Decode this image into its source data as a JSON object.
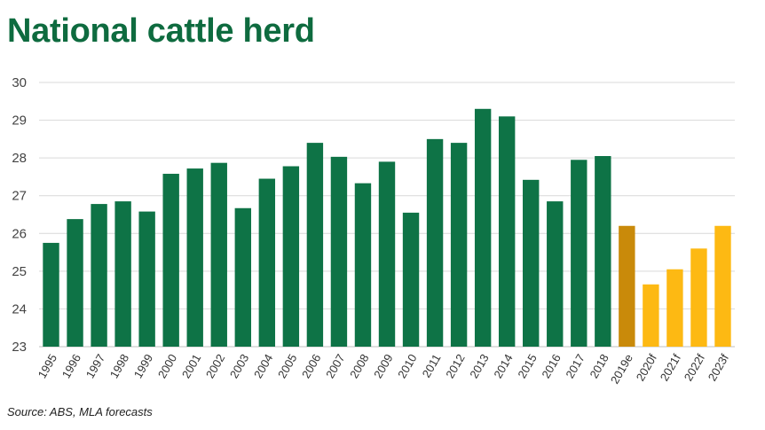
{
  "title": "National cattle herd",
  "source": "Source: ABS, MLA forecasts",
  "colors": {
    "title": "#0e6b3f",
    "historical": "#0e7346",
    "estimate": "#c98a0a",
    "forecast": "#fdb913",
    "grid": "#d9d9d9"
  },
  "chart_data": {
    "type": "bar",
    "title": "National cattle herd",
    "xlabel": "",
    "ylabel": "",
    "ylim": [
      23,
      30
    ],
    "yticks": [
      23,
      24,
      25,
      26,
      27,
      28,
      29,
      30
    ],
    "grid": true,
    "legend": "none",
    "categories": [
      "1995",
      "1996",
      "1997",
      "1998",
      "1999",
      "2000",
      "2001",
      "2002",
      "2003",
      "2004",
      "2005",
      "2006",
      "2007",
      "2008",
      "2009",
      "2010",
      "2011",
      "2012",
      "2013",
      "2014",
      "2015",
      "2016",
      "2017",
      "2018",
      "2019e",
      "2020f",
      "2021f",
      "2022f",
      "2023f"
    ],
    "values": [
      25.75,
      26.38,
      26.78,
      26.85,
      26.58,
      27.58,
      27.72,
      27.87,
      26.67,
      27.45,
      27.78,
      28.4,
      28.03,
      27.33,
      27.9,
      26.55,
      28.5,
      28.4,
      29.3,
      29.1,
      27.42,
      26.85,
      27.95,
      28.05,
      26.2,
      24.65,
      25.05,
      25.6,
      26.2
    ],
    "kinds": [
      "historical",
      "historical",
      "historical",
      "historical",
      "historical",
      "historical",
      "historical",
      "historical",
      "historical",
      "historical",
      "historical",
      "historical",
      "historical",
      "historical",
      "historical",
      "historical",
      "historical",
      "historical",
      "historical",
      "historical",
      "historical",
      "historical",
      "historical",
      "historical",
      "estimate",
      "forecast",
      "forecast",
      "forecast",
      "forecast"
    ]
  }
}
